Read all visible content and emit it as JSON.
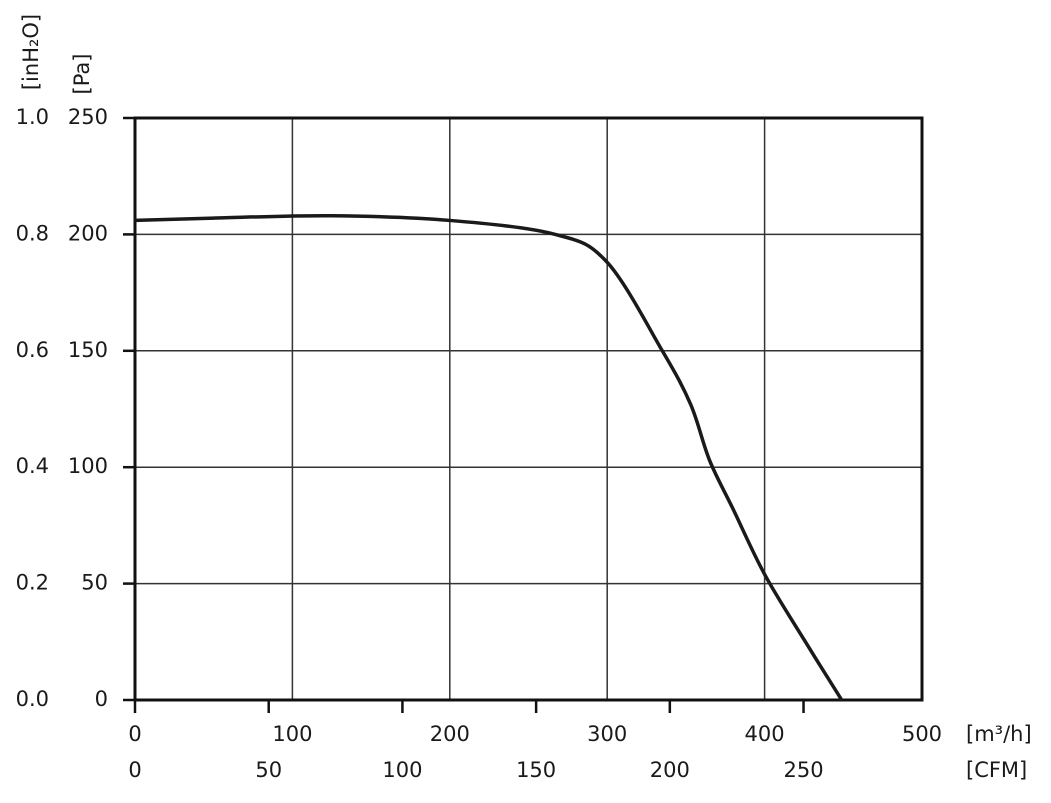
{
  "chart_data": {
    "type": "line",
    "x": [
      0,
      50,
      125,
      200,
      267,
      300,
      335,
      353,
      365,
      380,
      400,
      425,
      449
    ],
    "values": [
      206,
      207,
      208,
      206,
      200,
      188,
      150,
      127,
      103,
      82,
      54,
      26,
      0
    ],
    "color": "#1a1a1a",
    "xlim": [
      0,
      500
    ],
    "xticks": [
      0,
      100,
      200,
      300,
      400,
      500
    ],
    "x2lim": [
      0,
      294.3
    ],
    "x2ticks": [
      0,
      50,
      100,
      150,
      200,
      250
    ],
    "ylim": [
      0,
      250
    ],
    "yticks": [
      0,
      50,
      100,
      150,
      200,
      250
    ],
    "y2lim": [
      0,
      1.0
    ],
    "y2ticks": [
      {
        "value": 0,
        "label": "0.0"
      },
      0.2,
      0.4,
      0.6,
      0.8,
      {
        "value": 1.0,
        "label": "1.0"
      }
    ],
    "x_label": "[m³/h]",
    "x2_label": "[CFM]",
    "y_label": "[Pa]",
    "y2_label": "[inH₂O]",
    "grid": true
  }
}
